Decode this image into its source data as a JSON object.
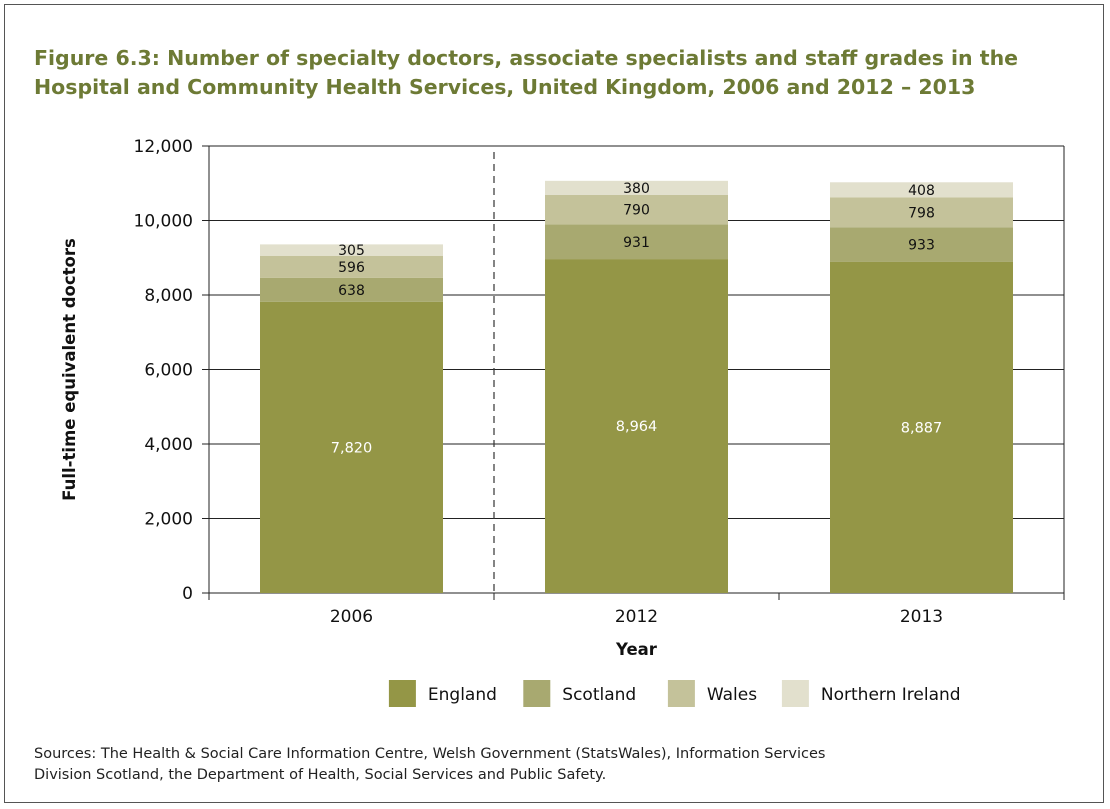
{
  "figure": {
    "title_line1": "Figure 6.3: Number of specialty doctors, associate specialists and staff grades in the",
    "title_line2": "Hospital and Community Health Services, United Kingdom, 2006 and 2012 – 2013",
    "source_line1": "Sources: The Health & Social Care Information Centre, Welsh Government (StatsWales), Information Services",
    "source_line2": "Division Scotland, the Department of Health, Social Services and Public Safety."
  },
  "chart_data": {
    "type": "bar",
    "stacked": true,
    "categories": [
      "2006",
      "2012",
      "2013"
    ],
    "series": [
      {
        "name": "England",
        "values": [
          7820,
          8964,
          8887
        ],
        "color": "#949646",
        "labels": [
          "7,820",
          "8,964",
          "8,887"
        ]
      },
      {
        "name": "Scotland",
        "values": [
          638,
          931,
          933
        ],
        "color": "#a8a970",
        "labels": [
          "638",
          "931",
          "933"
        ]
      },
      {
        "name": "Wales",
        "values": [
          596,
          790,
          798
        ],
        "color": "#c4c29a",
        "labels": [
          "596",
          "790",
          "798"
        ]
      },
      {
        "name": "Northern Ireland",
        "values": [
          305,
          380,
          408
        ],
        "color": "#e2e0cd",
        "labels": [
          "305",
          "380",
          "408"
        ]
      }
    ],
    "xlabel": "Year",
    "ylabel": "Full-time equivalent doctors",
    "ylim": [
      0,
      12000
    ],
    "yticks": [
      0,
      2000,
      4000,
      6000,
      8000,
      10000,
      12000
    ],
    "ytick_labels": [
      "0",
      "2,000",
      "4,000",
      "6,000",
      "8,000",
      "10,000",
      "12,000"
    ],
    "grid": true,
    "legend_position": "bottom",
    "separator_after_category": "2006"
  }
}
